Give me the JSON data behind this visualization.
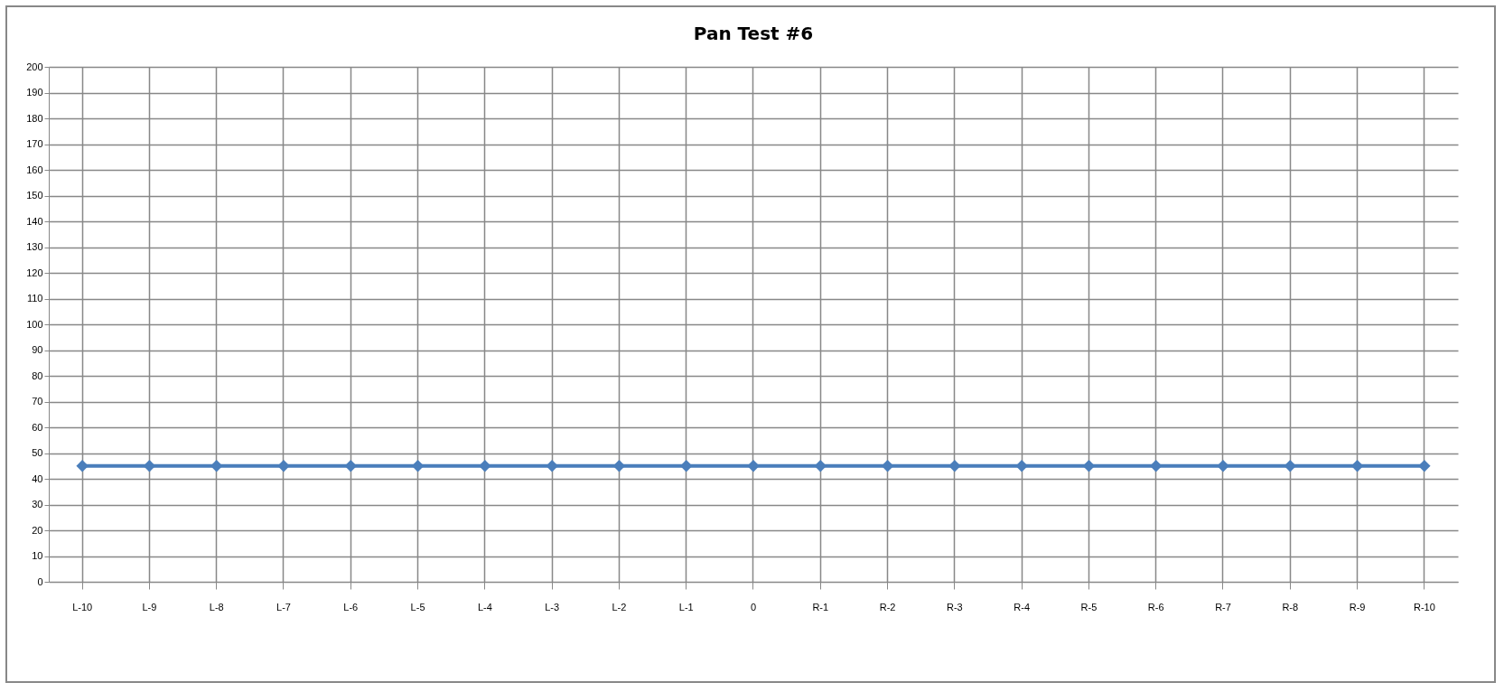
{
  "chart_data": {
    "type": "line",
    "title": "Pan Test #6",
    "categories": [
      "L-10",
      "L-9",
      "L-8",
      "L-7",
      "L-6",
      "L-5",
      "L-4",
      "L-3",
      "L-2",
      "L-1",
      "0",
      "R-1",
      "R-2",
      "R-3",
      "R-4",
      "R-5",
      "R-6",
      "R-7",
      "R-8",
      "R-9",
      "R-10"
    ],
    "series": [
      {
        "color": "#4a7ebb",
        "values": [
          45,
          45,
          45,
          45,
          45,
          45,
          45,
          45,
          45,
          45,
          45,
          45,
          45,
          45,
          45,
          45,
          45,
          45,
          45,
          45,
          45
        ]
      }
    ],
    "ylim": [
      0,
      200
    ],
    "yticks": [
      0,
      10,
      20,
      30,
      40,
      50,
      60,
      70,
      80,
      90,
      100,
      110,
      120,
      130,
      140,
      150,
      160,
      170,
      180,
      190,
      200
    ],
    "grid": true,
    "marker": "diamond",
    "line_style": "solid"
  }
}
